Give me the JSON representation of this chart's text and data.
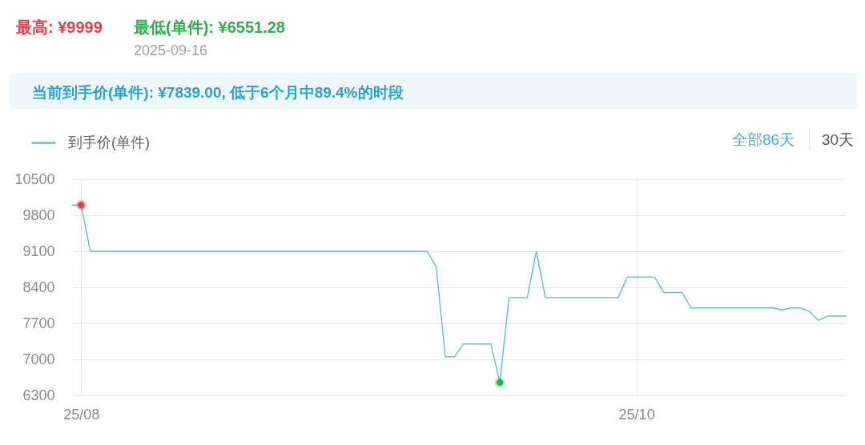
{
  "chart_data": {
    "type": "line",
    "x": [
      "2025-07-31",
      "2025-08-01",
      "2025-08-02",
      "2025-09-08",
      "2025-09-09",
      "2025-09-10",
      "2025-09-11",
      "2025-09-12",
      "2025-09-15",
      "2025-09-16",
      "2025-09-17",
      "2025-09-19",
      "2025-09-20",
      "2025-09-21",
      "2025-09-29",
      "2025-09-30",
      "2025-10-03",
      "2025-10-04",
      "2025-10-06",
      "2025-10-07",
      "2025-10-16",
      "2025-10-17",
      "2025-10-18",
      "2025-10-19",
      "2025-10-20",
      "2025-10-21",
      "2025-10-22",
      "2025-10-24"
    ],
    "series": [
      {
        "name": "到手价(单件)",
        "color": "#5bbfd6",
        "values": [
          9999,
          9999,
          9100,
          9100,
          8800,
          7050,
          7050,
          7300,
          7300,
          6551.28,
          8200,
          8200,
          9100,
          8200,
          8200,
          8600,
          8600,
          8300,
          8300,
          8000,
          8000,
          7960,
          8000,
          8000,
          7930,
          7760,
          7839,
          7839
        ]
      },
      {
        "type": "scatter",
        "x": [
          "2025-08-01"
        ],
        "color": "#d9414b",
        "values": [
          9999
        ]
      },
      {
        "type": "scatter",
        "x": [
          "2025-09-16"
        ],
        "color": "#2fae4e",
        "values": [
          6551.28
        ]
      }
    ],
    "annotations": [
      "最高: ¥9999",
      "最低(单件): ¥6551.28",
      "2025-09-16",
      "当前到手价(单件): ¥7839.00, 低于6个月中89.4%的时段",
      "全部86天",
      "30天"
    ],
    "xlim": [
      "2025-07-31",
      "2025-10-24"
    ],
    "xticks": [
      {
        "value": "2025-08-01",
        "label": "25/08"
      },
      {
        "value": "2025-10-01",
        "label": "25/10"
      }
    ],
    "ylim": [
      6300,
      10500
    ],
    "yticks": [
      6300,
      7000,
      7700,
      8400,
      9100,
      9800,
      10500
    ],
    "grid": true,
    "legend": "top left"
  }
}
